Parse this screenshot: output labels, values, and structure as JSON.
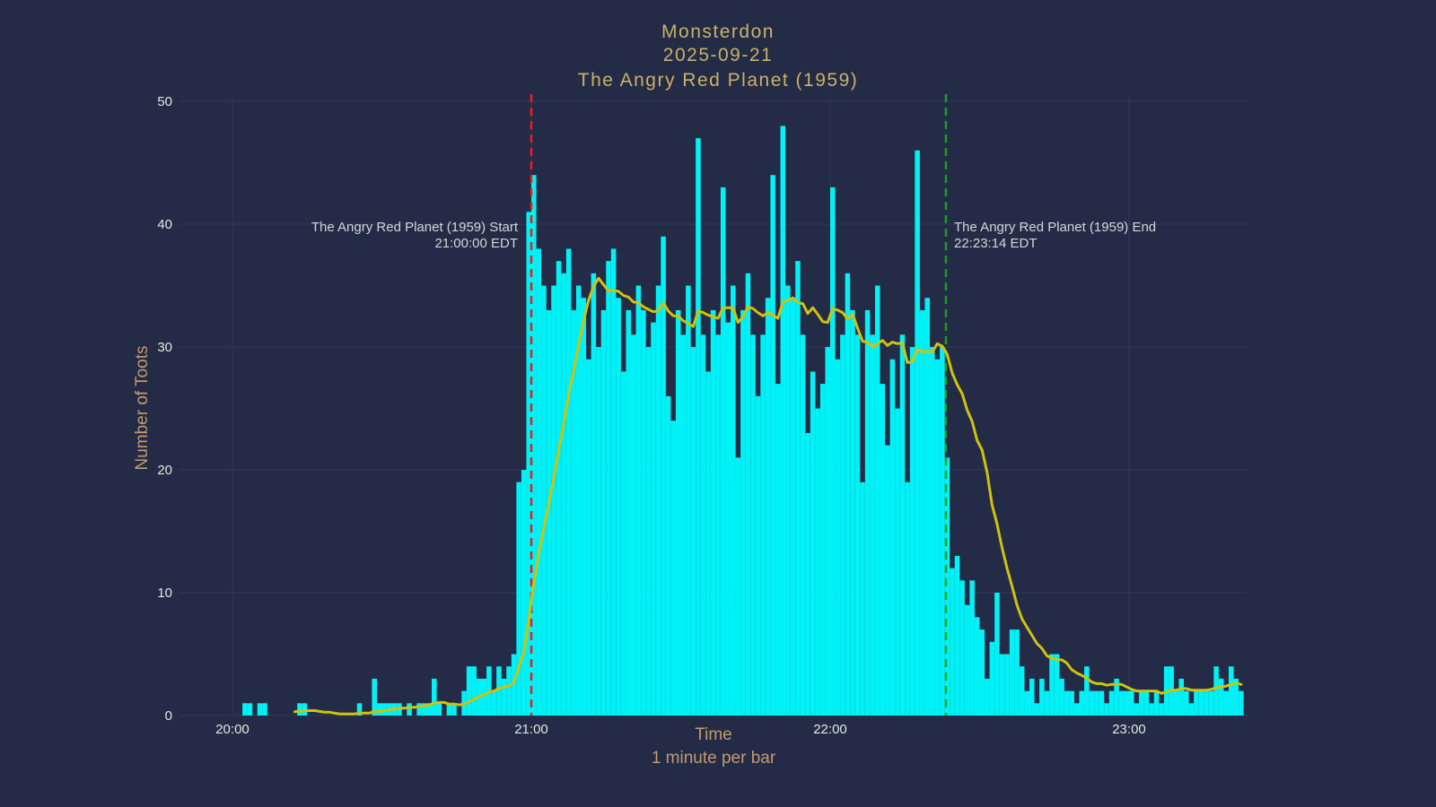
{
  "title": {
    "line1": "Monsterdon",
    "line2": "2025-09-21",
    "line3": "The Angry Red Planet (1959)"
  },
  "axes": {
    "y_title": "Number of Toots",
    "x_title": "Time",
    "x_subtitle": "1 minute per bar",
    "y_ticks": [
      0,
      10,
      20,
      30,
      40,
      50
    ],
    "x_ticks": [
      "20:00",
      "21:00",
      "22:00",
      "23:00"
    ]
  },
  "annotations": {
    "start_line1": "The Angry Red Planet (1959) Start",
    "start_line2": "21:00:00 EDT",
    "end_line1": "The Angry Red Planet (1959) End",
    "end_line2": "22:23:14 EDT"
  },
  "colors": {
    "background": "#232b46",
    "gridline": "#303a5e",
    "bar": "#00f1f6",
    "moving_average": "#d0c20d",
    "start_line": "#ff1515",
    "end_line": "#18a018",
    "title_text": "#c9b169",
    "axis_title_text": "#c49a6c",
    "tick_text": "#e6e6e6",
    "annotation_text": "#d6d6d6"
  },
  "chart_data": {
    "type": "bar",
    "title": "Monsterdon 2025-09-21 The Angry Red Planet (1959)",
    "xlabel": "Time",
    "ylabel": "Number of Toots",
    "x_start_time": "20:00",
    "minutes_per_bar": 1,
    "ylim": [
      0,
      50
    ],
    "grid": true,
    "legend": false,
    "x_tick_times": [
      "20:00",
      "21:00",
      "22:00",
      "23:00"
    ],
    "values": [
      0,
      0,
      1,
      1,
      0,
      1,
      1,
      0,
      0,
      0,
      0,
      0,
      0,
      1,
      1,
      0,
      0,
      0,
      0,
      0,
      0,
      0,
      0,
      0,
      0,
      1,
      0,
      0,
      3,
      1,
      1,
      1,
      1,
      1,
      0,
      1,
      0,
      1,
      1,
      1,
      3,
      1,
      0,
      1,
      1,
      0,
      2,
      4,
      4,
      3,
      3,
      4,
      2,
      4,
      3,
      4,
      5,
      19,
      20,
      41,
      44,
      38,
      35,
      33,
      35,
      37,
      36,
      38,
      33,
      35,
      34,
      29,
      36,
      30,
      33,
      37,
      38,
      34,
      28,
      33,
      31,
      35,
      33,
      30,
      32,
      35,
      39,
      26,
      24,
      33,
      31,
      35,
      30,
      47,
      31,
      28,
      33,
      31,
      43,
      32,
      35,
      21,
      33,
      36,
      31,
      26,
      31,
      34,
      44,
      27,
      48,
      35,
      34,
      37,
      31,
      23,
      28,
      25,
      27,
      30,
      43,
      29,
      31,
      36,
      33,
      31,
      19,
      33,
      31,
      35,
      27,
      22,
      29,
      25,
      31,
      19,
      30,
      46,
      33,
      34,
      30,
      29,
      30,
      21,
      12,
      13,
      11,
      9,
      11,
      8,
      7,
      3,
      6,
      10,
      5,
      5,
      7,
      7,
      4,
      2,
      3,
      1,
      3,
      2,
      5,
      5,
      3,
      2,
      2,
      1,
      2,
      4,
      2,
      2,
      2,
      1,
      2,
      3,
      2,
      2,
      2,
      1,
      2,
      2,
      1,
      2,
      1,
      4,
      4,
      2,
      3,
      2,
      1,
      2,
      2,
      2,
      2,
      4,
      3,
      2,
      4,
      3,
      2
    ],
    "moving_average": {
      "window_minutes": 15,
      "draw_from_minute_index": 12
    },
    "event_lines": [
      {
        "name": "start",
        "time": "21:00:00",
        "style": "dashed",
        "color_key": "start_line"
      },
      {
        "name": "end",
        "time": "22:23:14",
        "style": "dashed",
        "color_key": "end_line"
      }
    ]
  }
}
